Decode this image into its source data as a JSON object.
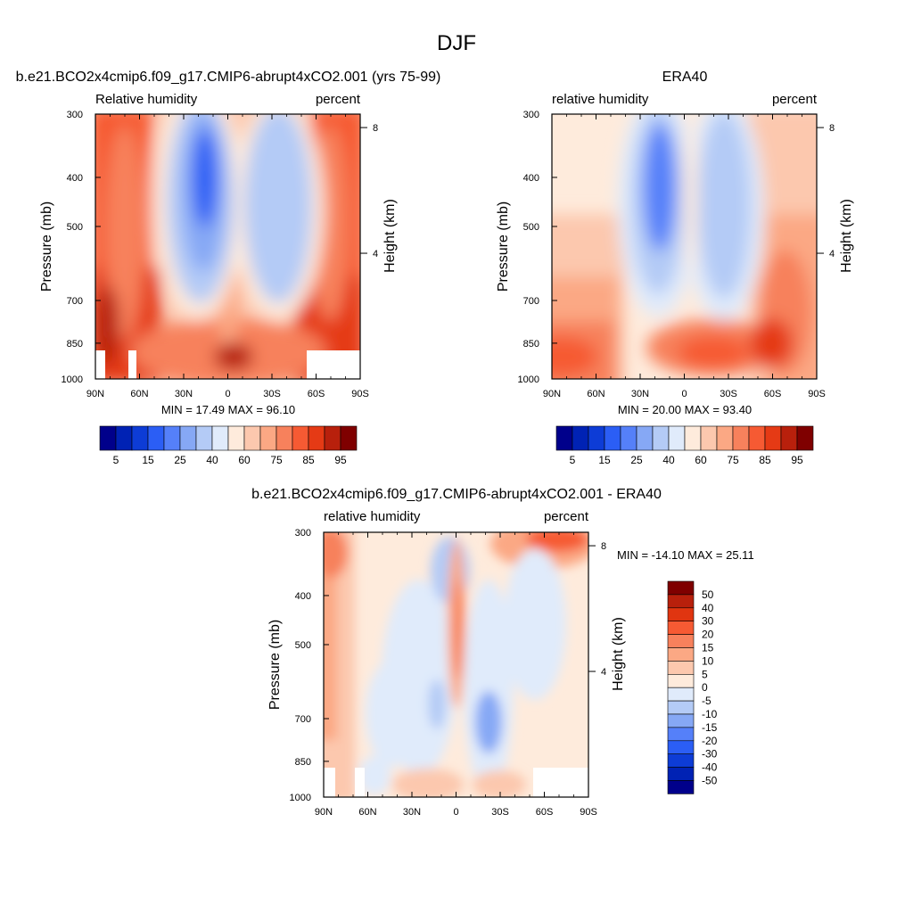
{
  "figure": {
    "season": "DJF"
  },
  "chart_data": [
    {
      "type": "heatmap",
      "title": "b.e21.BCO2x4cmip6.f09_g17.CMIP6-abrupt4xCO2.001 (yrs 75-99)",
      "left_label": "Relative humidity",
      "right_label": "percent",
      "ylabel": "Pressure (mb)",
      "ylabel_right": "Height (km)",
      "x_ticks": [
        "90N",
        "60N",
        "30N",
        "0",
        "30S",
        "60S",
        "90S"
      ],
      "y_ticks": [
        "300",
        "400",
        "500",
        "700",
        "850",
        "1000"
      ],
      "y_ticks_right": [
        "8",
        "4"
      ],
      "stats": "MIN =  17.49  MAX =  96.10",
      "zlim": [
        17.49,
        96.1
      ]
    },
    {
      "type": "heatmap",
      "title": "ERA40",
      "left_label": "relative humidity",
      "right_label": "percent",
      "ylabel": "Pressure (mb)",
      "ylabel_right": "Height (km)",
      "x_ticks": [
        "90N",
        "60N",
        "30N",
        "0",
        "30S",
        "60S",
        "90S"
      ],
      "y_ticks": [
        "300",
        "400",
        "500",
        "700",
        "850",
        "1000"
      ],
      "y_ticks_right": [
        "8",
        "4"
      ],
      "stats": "MIN =  20.00  MAX =  93.40",
      "zlim": [
        20.0,
        93.4
      ]
    },
    {
      "type": "heatmap",
      "title": "b.e21.BCO2x4cmip6.f09_g17.CMIP6-abrupt4xCO2.001 - ERA40",
      "left_label": "relative humidity",
      "right_label": "percent",
      "ylabel": "Pressure (mb)",
      "ylabel_right": "Height (km)",
      "x_ticks": [
        "90N",
        "60N",
        "30N",
        "0",
        "30S",
        "60S",
        "90S"
      ],
      "y_ticks": [
        "300",
        "400",
        "500",
        "700",
        "850",
        "1000"
      ],
      "y_ticks_right": [
        "8",
        "4"
      ],
      "stats": "MIN = -14.10  MAX =  25.11",
      "zlim": [
        -14.1,
        25.11
      ]
    }
  ],
  "colorbars": {
    "abs": {
      "labels": [
        "5",
        "15",
        "25",
        "40",
        "60",
        "75",
        "85",
        "95"
      ],
      "colors": [
        "#00008b",
        "#0022b4",
        "#0d3cd6",
        "#2b5ef5",
        "#5580f9",
        "#86a8f5",
        "#b4cbf6",
        "#e0ebfb",
        "#feebdc",
        "#fcc8ae",
        "#fba884",
        "#f7815c",
        "#f65a33",
        "#e53a15",
        "#b8200c",
        "#7f0000"
      ]
    },
    "diff": {
      "labels": [
        "50",
        "40",
        "30",
        "20",
        "15",
        "10",
        "5",
        "0",
        "-5",
        "-10",
        "-15",
        "-20",
        "-30",
        "-40",
        "-50"
      ],
      "colors": [
        "#7f0000",
        "#b8200c",
        "#e03510",
        "#f65a33",
        "#f7815c",
        "#fba884",
        "#fcc8ae",
        "#feebdc",
        "#e0ebfb",
        "#b4cbf6",
        "#86a8f5",
        "#5580f9",
        "#2b5ef5",
        "#0d3cd6",
        "#0022b4",
        "#00008b"
      ]
    }
  }
}
